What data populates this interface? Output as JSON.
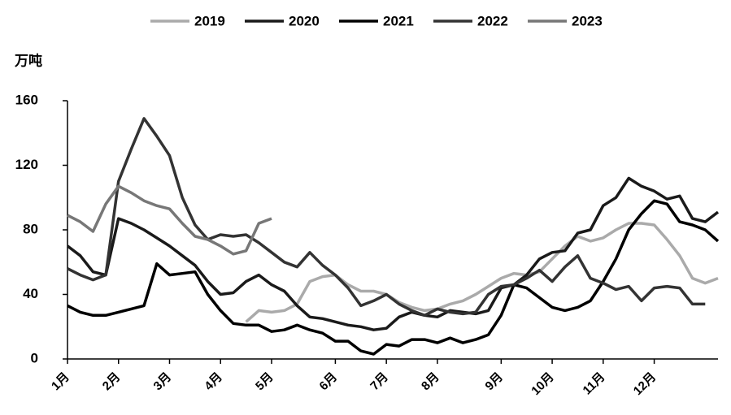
{
  "chart_data": {
    "type": "line",
    "y_label": "万吨",
    "categories": [
      "1月",
      null,
      null,
      null,
      "2月",
      null,
      null,
      null,
      "3月",
      null,
      null,
      null,
      "4月",
      null,
      null,
      null,
      "5月",
      null,
      null,
      null,
      null,
      "6月",
      null,
      null,
      null,
      "7月",
      null,
      null,
      null,
      "8月",
      null,
      null,
      null,
      null,
      "9月",
      null,
      null,
      null,
      "10月",
      null,
      null,
      null,
      "11月",
      null,
      null,
      null,
      "12月",
      null,
      null,
      null,
      null,
      null
    ],
    "series": [
      {
        "name": "2019",
        "color": "#aaaaaa",
        "values": [
          null,
          null,
          null,
          null,
          null,
          null,
          null,
          null,
          null,
          null,
          null,
          null,
          null,
          null,
          23,
          30,
          29,
          30,
          34,
          48,
          51,
          52,
          46,
          42,
          42,
          40,
          35,
          32,
          30,
          31,
          34,
          36,
          40,
          45,
          50,
          53,
          52,
          54,
          62,
          70,
          76,
          73,
          75,
          80,
          84,
          84,
          83,
          74,
          64,
          50,
          47,
          50
        ]
      },
      {
        "name": "2020",
        "color": "#1a1a1a",
        "values": [
          70,
          64,
          54,
          52,
          87,
          84,
          80,
          75,
          70,
          64,
          58,
          48,
          40,
          41,
          48,
          52,
          46,
          42,
          33,
          26,
          25,
          23,
          21,
          20,
          18,
          19,
          26,
          29,
          27,
          26,
          30,
          29,
          28,
          30,
          44,
          46,
          52,
          62,
          66,
          67,
          78,
          80,
          95,
          100,
          112,
          107,
          104,
          99,
          101,
          87,
          85,
          91
        ]
      },
      {
        "name": "2021",
        "color": "#000000",
        "values": [
          33,
          29,
          27,
          27,
          29,
          31,
          33,
          59,
          52,
          53,
          54,
          40,
          30,
          22,
          21,
          21,
          17,
          18,
          21,
          18,
          16,
          11,
          11,
          5,
          3,
          9,
          8,
          12,
          12,
          10,
          13,
          10,
          12,
          15,
          27,
          46,
          44,
          38,
          32,
          30,
          32,
          36,
          48,
          62,
          80,
          90,
          98,
          96,
          85,
          83,
          80,
          73
        ]
      },
      {
        "name": "2022",
        "color": "#333333",
        "values": [
          56,
          52,
          49,
          52,
          110,
          130,
          149,
          138,
          126,
          100,
          83,
          74,
          77,
          76,
          77,
          72,
          66,
          60,
          57,
          66,
          58,
          52,
          44,
          33,
          36,
          40,
          34,
          30,
          27,
          31,
          29,
          28,
          29,
          40,
          45,
          46,
          50,
          55,
          48,
          57,
          64,
          50,
          47,
          43,
          45,
          36,
          44,
          45,
          44,
          34,
          34,
          null
        ]
      },
      {
        "name": "2023",
        "color": "#777777",
        "values": [
          89,
          85,
          79,
          96,
          107,
          103,
          98,
          95,
          93,
          84,
          76,
          74,
          70,
          65,
          67,
          84,
          87,
          null,
          null,
          null,
          null,
          null,
          null,
          null,
          null,
          null,
          null,
          null,
          null,
          null,
          null,
          null,
          null,
          null,
          null,
          null,
          null,
          null,
          null,
          null,
          null,
          null,
          null,
          null,
          null,
          null,
          null,
          null,
          null,
          null,
          null,
          null
        ]
      }
    ],
    "ylim": [
      0,
      160
    ],
    "yticks": [
      0,
      40,
      80,
      120,
      160
    ],
    "grid": false
  }
}
